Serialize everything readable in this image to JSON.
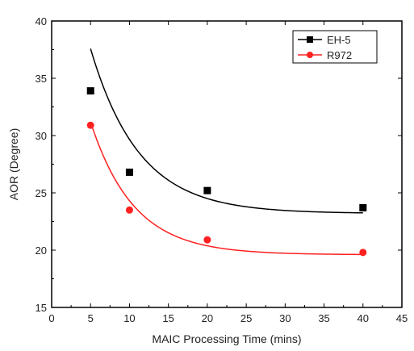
{
  "chart_data": {
    "type": "scatter",
    "title": "",
    "xlabel": "MAIC Processing Time (mins)",
    "ylabel": "AOR (Degree)",
    "xlim": [
      0,
      45
    ],
    "ylim": [
      15,
      40
    ],
    "xticks": [
      0,
      5,
      10,
      15,
      20,
      25,
      30,
      35,
      40,
      45
    ],
    "yticks": [
      15,
      20,
      25,
      30,
      35,
      40
    ],
    "grid": false,
    "legend_position": "top-right",
    "series": [
      {
        "name": "EH-5",
        "color": "#000000",
        "marker": "square",
        "x": [
          5,
          10,
          20,
          40
        ],
        "y": [
          33.9,
          26.8,
          25.2,
          23.7
        ],
        "fit": {
          "a": 23.2,
          "b": 32.0,
          "k": 0.16
        }
      },
      {
        "name": "R972",
        "color": "#ff2020",
        "marker": "circle",
        "x": [
          5,
          10,
          20,
          40
        ],
        "y": [
          30.9,
          23.5,
          20.9,
          19.8
        ],
        "fit": {
          "a": 19.6,
          "b": 28.5,
          "k": 0.18
        }
      }
    ]
  }
}
